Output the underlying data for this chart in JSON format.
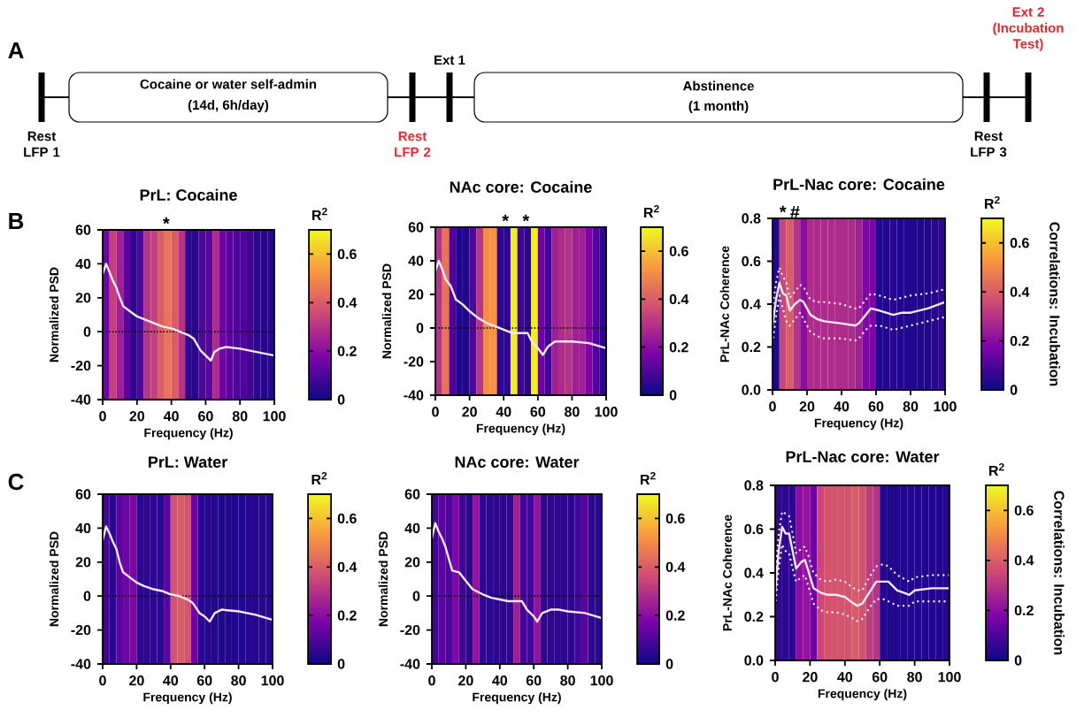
{
  "chart_data": [
    {
      "type": "other",
      "annotations": [
        "A",
        "Cocaine or water self-admin",
        "(14d, 6h/day)",
        "Abstinence",
        "(1 month)",
        "Rest LFP 1",
        "Rest LFP 2",
        "Ext 1",
        "Rest LFP 3",
        "Ext 2 (Incubation Test)"
      ]
    },
    {
      "type": "heatmap",
      "title": "PrL: Cocaine",
      "xlabel": "Frequency (Hz)",
      "ylabel": "Normalized PSD",
      "clabel": "R$^{2}$",
      "x": [
        2,
        6,
        10,
        14,
        18,
        22,
        26,
        30,
        34,
        38,
        42,
        46,
        50,
        54,
        58,
        62,
        66,
        70,
        74,
        78,
        82,
        86,
        90,
        94,
        98
      ],
      "cells": [
        [
          0.15,
          0.33,
          0.25,
          0.12,
          0.05,
          0.1,
          0.3,
          0.33,
          0.4,
          0.45,
          0.4,
          0.3,
          0.05,
          0.04,
          0.1,
          0.12,
          0.28,
          0.15,
          0.12,
          0.1,
          0.1,
          0.08,
          0.05,
          0.04,
          0.04
        ]
      ],
      "clim": [
        0,
        0.7
      ],
      "cticks": [
        0,
        0.2,
        0.4,
        0.6
      ],
      "xlim": [
        0,
        100
      ],
      "xticks": [
        0,
        20,
        40,
        60,
        80,
        100
      ],
      "ylim": [
        -40,
        60
      ],
      "yticks": [
        -40,
        -20,
        0,
        20,
        40,
        60
      ],
      "series": [
        {
          "type": "line",
          "color": "#f4e8f4",
          "x": [
            0,
            2,
            4,
            6,
            8,
            10,
            12,
            16,
            20,
            25,
            30,
            35,
            40,
            45,
            50,
            53,
            57,
            60,
            63,
            65,
            68,
            72,
            80,
            90,
            100
          ],
          "values": [
            34,
            40,
            35,
            30,
            26,
            20,
            15,
            12,
            9,
            7,
            5,
            3,
            2,
            0,
            -2,
            -4,
            -11,
            -14,
            -17,
            -12,
            -10,
            -9,
            -10,
            -12,
            -14
          ]
        }
      ],
      "ref_lines": [
        {
          "axis": "y",
          "value": 0,
          "color": "#000000",
          "line_style": "dotted"
        }
      ],
      "annotations": [
        "B",
        "*"
      ]
    },
    {
      "type": "heatmap",
      "title": "NAc core: Cocaine",
      "xlabel": "Frequency (Hz)",
      "ylabel": "Normalized PSD",
      "clabel": "R$^{2}$",
      "x": [
        2,
        6,
        10,
        14,
        18,
        22,
        26,
        30,
        34,
        38,
        42,
        46,
        50,
        54,
        58,
        62,
        66,
        70,
        74,
        78,
        82,
        86,
        90,
        94,
        98
      ],
      "cells": [
        [
          0.3,
          0.45,
          0.1,
          0.03,
          0.03,
          0.1,
          0.3,
          0.5,
          0.52,
          0.05,
          0.05,
          0.68,
          0.08,
          0.05,
          0.68,
          0.15,
          0.08,
          0.25,
          0.28,
          0.3,
          0.25,
          0.25,
          0.18,
          0.1,
          0.05
        ]
      ],
      "clim": [
        0,
        0.7
      ],
      "cticks": [
        0,
        0.2,
        0.4,
        0.6
      ],
      "xlim": [
        0,
        100
      ],
      "xticks": [
        0,
        20,
        40,
        60,
        80,
        100
      ],
      "ylim": [
        -40,
        60
      ],
      "yticks": [
        -40,
        -20,
        0,
        20,
        40,
        60
      ],
      "series": [
        {
          "type": "line",
          "color": "#f4e8f4",
          "x": [
            0,
            2,
            4,
            6,
            9,
            12,
            16,
            20,
            25,
            30,
            35,
            40,
            45,
            50,
            54,
            57,
            60,
            63,
            66,
            70,
            80,
            90,
            100
          ],
          "values": [
            34,
            40,
            35,
            29,
            25,
            17,
            14,
            10,
            6,
            3,
            1,
            -1,
            -3,
            -3,
            -3,
            -9,
            -12,
            -16,
            -11,
            -8,
            -8,
            -9,
            -12
          ]
        }
      ],
      "ref_lines": [
        {
          "axis": "y",
          "value": 0,
          "color": "#000000",
          "line_style": "dotted"
        }
      ],
      "annotations": [
        "*",
        "*"
      ]
    },
    {
      "type": "heatmap",
      "title": "PrL-Nac core: Cocaine",
      "xlabel": "Frequency (Hz)",
      "ylabel": "PrL-NAc Coherence",
      "clabel": "R$^{2}$",
      "x": [
        2,
        6,
        10,
        14,
        18,
        22,
        26,
        30,
        34,
        38,
        42,
        46,
        50,
        54,
        58,
        62,
        66,
        70,
        74,
        78,
        82,
        86,
        90,
        94,
        98
      ],
      "cells": [
        [
          0.03,
          0.35,
          0.4,
          0.3,
          0.2,
          0.28,
          0.28,
          0.28,
          0.28,
          0.28,
          0.28,
          0.28,
          0.25,
          0.18,
          0.18,
          0.03,
          0.03,
          0.04,
          0.03,
          0.03,
          0.03,
          0.03,
          0.03,
          0.04,
          0.05
        ]
      ],
      "clim": [
        0,
        0.7
      ],
      "cticks": [
        0,
        0.2,
        0.4,
        0.6
      ],
      "xlim": [
        0,
        100
      ],
      "xticks": [
        0,
        20,
        40,
        60,
        80,
        100
      ],
      "ylim": [
        0,
        0.8
      ],
      "yticks": [
        {
          "value": 0,
          "label": "0.0"
        },
        0.2,
        0.4,
        0.6,
        0.8
      ],
      "series": [
        {
          "type": "line",
          "color": "#f4e8f4",
          "line_style": "solid",
          "x": [
            0,
            2,
            4,
            6,
            8,
            10,
            13,
            16,
            18,
            22,
            26,
            30,
            40,
            48,
            50,
            54,
            57,
            62,
            70,
            75,
            80,
            90,
            100
          ],
          "values": [
            0.3,
            0.42,
            0.5,
            0.45,
            0.44,
            0.37,
            0.4,
            0.42,
            0.41,
            0.35,
            0.33,
            0.32,
            0.31,
            0.3,
            0.31,
            0.35,
            0.38,
            0.37,
            0.35,
            0.36,
            0.36,
            0.38,
            0.41
          ]
        },
        {
          "type": "line",
          "color": "#f4e8f4",
          "line_style": "dotted",
          "x": [
            0,
            2,
            4,
            6,
            8,
            10,
            13,
            16,
            18,
            22,
            26,
            30,
            40,
            48,
            50,
            54,
            57,
            62,
            70,
            75,
            80,
            90,
            100
          ],
          "values": [
            0.38,
            0.5,
            0.57,
            0.53,
            0.5,
            0.43,
            0.46,
            0.49,
            0.48,
            0.42,
            0.41,
            0.41,
            0.4,
            0.38,
            0.38,
            0.42,
            0.45,
            0.44,
            0.42,
            0.43,
            0.44,
            0.45,
            0.47
          ]
        },
        {
          "type": "line",
          "color": "#f4e8f4",
          "line_style": "dotted",
          "x": [
            0,
            2,
            4,
            6,
            8,
            10,
            13,
            16,
            18,
            22,
            26,
            30,
            40,
            48,
            50,
            54,
            57,
            62,
            70,
            75,
            80,
            90,
            100
          ],
          "values": [
            0.22,
            0.34,
            0.44,
            0.38,
            0.32,
            0.3,
            0.33,
            0.36,
            0.33,
            0.27,
            0.25,
            0.24,
            0.24,
            0.23,
            0.24,
            0.28,
            0.3,
            0.3,
            0.28,
            0.29,
            0.3,
            0.32,
            0.34
          ]
        }
      ],
      "annotations": [
        "*",
        "#",
        "Correlations: Incubation"
      ]
    },
    {
      "type": "heatmap",
      "title": "PrL: Water",
      "xlabel": "Frequency (Hz)",
      "ylabel": "Normalized PSD",
      "clabel": "R$^{2}$",
      "x": [
        2,
        6,
        10,
        14,
        18,
        22,
        26,
        30,
        34,
        38,
        42,
        46,
        50,
        54,
        58,
        62,
        66,
        70,
        74,
        78,
        82,
        86,
        90,
        94,
        98
      ],
      "cells": [
        [
          0.08,
          0.05,
          0.12,
          0.15,
          0.18,
          0.05,
          0.05,
          0.05,
          0.05,
          0.12,
          0.38,
          0.4,
          0.38,
          0.15,
          0.04,
          0.04,
          0.03,
          0.03,
          0.03,
          0.03,
          0.03,
          0.04,
          0.04,
          0.04,
          0.04
        ]
      ],
      "clim": [
        0,
        0.7
      ],
      "cticks": [
        0,
        0.2,
        0.4,
        0.6
      ],
      "xlim": [
        0,
        100
      ],
      "xticks": [
        0,
        20,
        40,
        60,
        80,
        100
      ],
      "ylim": [
        -40,
        60
      ],
      "yticks": [
        -40,
        -20,
        0,
        20,
        40,
        60
      ],
      "series": [
        {
          "type": "line",
          "color": "#f4e8f4",
          "x": [
            0,
            2,
            4,
            6,
            8,
            10,
            12,
            16,
            20,
            24,
            30,
            35,
            40,
            45,
            50,
            53,
            57,
            60,
            63,
            66,
            70,
            80,
            90,
            100
          ],
          "values": [
            33,
            41,
            37,
            32,
            28,
            20,
            14,
            11,
            8,
            6,
            4,
            3,
            1,
            0,
            -2,
            -4,
            -10,
            -12,
            -15,
            -10,
            -8,
            -9,
            -11,
            -14
          ]
        }
      ],
      "ref_lines": [
        {
          "axis": "y",
          "value": 0,
          "color": "#000000",
          "line_style": "dotted"
        }
      ],
      "annotations": [
        "C"
      ]
    },
    {
      "type": "heatmap",
      "title": "NAc core: Water",
      "xlabel": "Frequency (Hz)",
      "ylabel": "Normalized PSD",
      "clabel": "R$^{2}$",
      "x": [
        2,
        6,
        10,
        14,
        18,
        22,
        26,
        30,
        34,
        38,
        42,
        46,
        50,
        54,
        58,
        62,
        66,
        70,
        74,
        78,
        82,
        86,
        90,
        94,
        98
      ],
      "cells": [
        [
          0.08,
          0.12,
          0.1,
          0.18,
          0.08,
          0.05,
          0.22,
          0.05,
          0.05,
          0.05,
          0.05,
          0.05,
          0.25,
          0.08,
          0.08,
          0.22,
          0.05,
          0.05,
          0.05,
          0.05,
          0.05,
          0.08,
          0.12,
          0.05,
          0.05
        ]
      ],
      "clim": [
        0,
        0.7
      ],
      "cticks": [
        0,
        0.2,
        0.4,
        0.6
      ],
      "xlim": [
        0,
        100
      ],
      "xticks": [
        0,
        20,
        40,
        60,
        80,
        100
      ],
      "ylim": [
        -40,
        60
      ],
      "yticks": [
        -40,
        -20,
        0,
        20,
        40,
        60
      ],
      "series": [
        {
          "type": "line",
          "color": "#f4e8f4",
          "x": [
            0,
            2,
            4,
            6,
            8,
            10,
            12,
            16,
            20,
            24,
            30,
            35,
            40,
            45,
            50,
            53,
            56,
            60,
            62,
            65,
            70,
            75,
            80,
            90,
            100
          ],
          "values": [
            34,
            43,
            38,
            34,
            29,
            22,
            15,
            14,
            9,
            4,
            1,
            -1,
            -2,
            -3,
            -3,
            -3,
            -8,
            -12,
            -15,
            -10,
            -8,
            -8,
            -9,
            -10,
            -13
          ]
        }
      ],
      "ref_lines": [
        {
          "axis": "y",
          "value": 0,
          "color": "#000000",
          "line_style": "dotted"
        }
      ]
    },
    {
      "type": "heatmap",
      "title": "PrL-Nac core: Water",
      "xlabel": "Frequency (Hz)",
      "ylabel": "PrL-NAc Coherence",
      "clabel": "R$^{2}$",
      "x": [
        2,
        6,
        10,
        14,
        18,
        22,
        26,
        30,
        34,
        38,
        42,
        46,
        50,
        54,
        58,
        62,
        66,
        70,
        74,
        78,
        82,
        86,
        90,
        94,
        98
      ],
      "cells": [
        [
          0.05,
          0.05,
          0.05,
          0.2,
          0.22,
          0.15,
          0.35,
          0.38,
          0.38,
          0.38,
          0.38,
          0.4,
          0.38,
          0.32,
          0.3,
          0.04,
          0.03,
          0.03,
          0.03,
          0.03,
          0.03,
          0.03,
          0.03,
          0.03,
          0.04
        ]
      ],
      "clim": [
        0,
        0.7
      ],
      "cticks": [
        0,
        0.2,
        0.4,
        0.6
      ],
      "xlim": [
        0,
        100
      ],
      "xticks": [
        0,
        20,
        40,
        60,
        80,
        100
      ],
      "ylim": [
        0,
        0.8
      ],
      "yticks": [
        {
          "value": 0,
          "label": "0.0"
        },
        0.2,
        0.4,
        0.6,
        0.8
      ],
      "series": [
        {
          "type": "line",
          "color": "#f4e8f4",
          "line_style": "solid",
          "x": [
            0,
            2,
            4,
            6,
            8,
            10,
            12,
            15,
            17,
            19,
            22,
            26,
            30,
            35,
            40,
            45,
            47,
            50,
            54,
            58,
            62,
            65,
            70,
            77,
            80,
            90,
            100
          ],
          "values": [
            0.31,
            0.5,
            0.61,
            0.58,
            0.58,
            0.5,
            0.42,
            0.45,
            0.46,
            0.41,
            0.33,
            0.31,
            0.3,
            0.3,
            0.29,
            0.26,
            0.25,
            0.26,
            0.31,
            0.36,
            0.36,
            0.36,
            0.32,
            0.3,
            0.32,
            0.33,
            0.33
          ]
        },
        {
          "type": "line",
          "color": "#f4e8f4",
          "line_style": "dotted",
          "x": [
            0,
            2,
            4,
            6,
            8,
            10,
            12,
            15,
            17,
            19,
            22,
            26,
            30,
            35,
            40,
            45,
            47,
            50,
            54,
            58,
            62,
            65,
            70,
            77,
            80,
            90,
            100
          ],
          "values": [
            0.38,
            0.58,
            0.68,
            0.67,
            0.66,
            0.58,
            0.49,
            0.51,
            0.52,
            0.48,
            0.4,
            0.37,
            0.36,
            0.37,
            0.36,
            0.33,
            0.32,
            0.32,
            0.38,
            0.43,
            0.44,
            0.43,
            0.39,
            0.36,
            0.38,
            0.39,
            0.39
          ]
        },
        {
          "type": "line",
          "color": "#f4e8f4",
          "line_style": "dotted",
          "x": [
            0,
            2,
            4,
            6,
            8,
            10,
            12,
            15,
            17,
            19,
            22,
            26,
            30,
            35,
            40,
            45,
            47,
            50,
            54,
            58,
            62,
            65,
            70,
            77,
            80,
            90,
            100
          ],
          "values": [
            0.25,
            0.42,
            0.53,
            0.5,
            0.49,
            0.42,
            0.36,
            0.38,
            0.39,
            0.34,
            0.26,
            0.23,
            0.22,
            0.22,
            0.21,
            0.19,
            0.18,
            0.19,
            0.24,
            0.28,
            0.28,
            0.27,
            0.25,
            0.25,
            0.27,
            0.27,
            0.27
          ]
        }
      ],
      "annotations": [
        "Correlations: Incubation"
      ]
    }
  ]
}
